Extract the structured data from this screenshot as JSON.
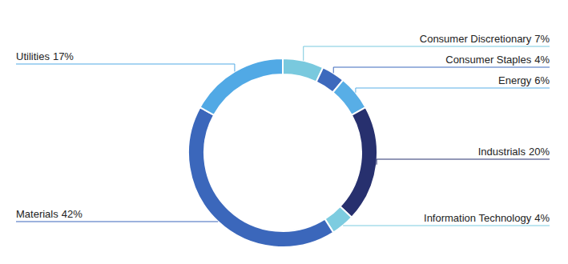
{
  "chart_data": {
    "type": "donut",
    "categories": [
      "Consumer Discretionary",
      "Consumer Staples",
      "Energy",
      "Industrials",
      "Information Technology",
      "Materials",
      "Utilities"
    ],
    "values": [
      7,
      4,
      6,
      20,
      4,
      42,
      17
    ],
    "value_labels": [
      "7%",
      "4%",
      "6%",
      "20%",
      "4%",
      "42%",
      "17%"
    ],
    "colors": [
      "#79c9de",
      "#3d69bd",
      "#58aee6",
      "#27306e",
      "#7dcce0",
      "#3b67bb",
      "#51a9e5"
    ],
    "data_labels": true
  }
}
